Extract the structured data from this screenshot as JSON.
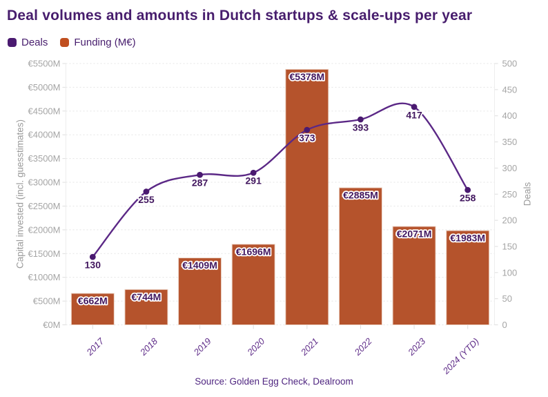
{
  "title": "Deal volumes and amounts in Dutch startups & scale-ups per year",
  "legend": {
    "items": [
      {
        "label": "Deals",
        "color": "#4a1a70"
      },
      {
        "label": "Funding (M€)",
        "color": "#c04f1f"
      }
    ]
  },
  "source": "Source: Golden Egg Check, Dealroom",
  "colors": {
    "title": "#471d6d",
    "legend_text": "#471d6d",
    "bar": "#b5532c",
    "bar_border": "#ecd4c6",
    "line": "#5b2886",
    "point": "#4a1a70",
    "data_label": "#42175f",
    "x_label": "#5f2d89",
    "tick_label": "#a5a5a5",
    "axis_title": "#9b9b9b",
    "grid": "#e4e4e4",
    "plot_border": "#ededed",
    "tick_mark": "#dddddd",
    "source_text": "#4f2580"
  },
  "chart_data": {
    "type": "combo-bar-line",
    "categories": [
      "2017",
      "2018",
      "2019",
      "2020",
      "2021",
      "2022",
      "2023",
      "2024 (YTD)"
    ],
    "series": [
      {
        "name": "Funding (M€)",
        "type": "bar",
        "axis": "left",
        "values": [
          662,
          744,
          1409,
          1696,
          5378,
          2885,
          2071,
          1983
        ],
        "labels": [
          "€662M",
          "€744M",
          "€1409M",
          "€1696M",
          "€5378M",
          "€2885M",
          "€2071M",
          "€1983M"
        ]
      },
      {
        "name": "Deals",
        "type": "line",
        "axis": "right",
        "values": [
          130,
          255,
          287,
          291,
          373,
          393,
          417,
          258
        ],
        "labels": [
          "130",
          "255",
          "287",
          "291",
          "373",
          "393",
          "417",
          "258"
        ]
      }
    ],
    "left_axis": {
      "title": "Capital invested (incl. guesstimates)",
      "min": 0,
      "max": 5500,
      "step": 500,
      "ticks": [
        "€0M",
        "€500M",
        "€1000M",
        "€1500M",
        "€2000M",
        "€2500M",
        "€3000M",
        "€3500M",
        "€4000M",
        "€4500M",
        "€5000M",
        "€5500M"
      ]
    },
    "right_axis": {
      "title": "Deals",
      "min": 0,
      "max": 500,
      "step": 50,
      "ticks": [
        "0",
        "50",
        "100",
        "150",
        "200",
        "250",
        "300",
        "350",
        "400",
        "450",
        "500"
      ]
    },
    "grid": "horizontal dotted",
    "legend_position": "top-left"
  }
}
